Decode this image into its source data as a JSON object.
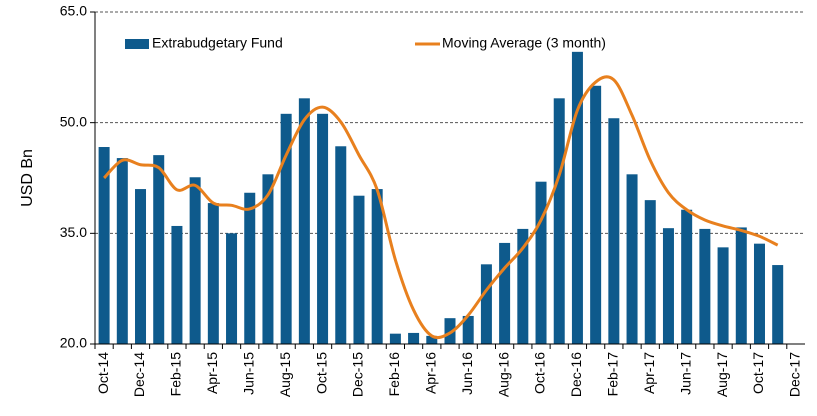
{
  "chart_data": {
    "type": "bar_line",
    "ylabel": "USD  Bn",
    "categories": [
      "Oct-14",
      null,
      "Dec-14",
      null,
      "Feb-15",
      null,
      "Apr-15",
      null,
      "Jun-15",
      null,
      "Aug-15",
      null,
      "Oct-15",
      null,
      "Dec-15",
      null,
      "Feb-16",
      null,
      "Apr-16",
      null,
      "Jun-16",
      null,
      "Aug-16",
      null,
      "Oct-16",
      null,
      "Dec-16",
      null,
      "Feb-17",
      null,
      "Apr-17",
      null,
      "Jun-17",
      null,
      "Aug-17",
      null,
      "Oct-17",
      null,
      "Dec-17"
    ],
    "series": [
      {
        "name": "Extrabudgetary Fund",
        "color": "#0e5a8c",
        "kind": "bar",
        "values": [
          46.7,
          45.2,
          41.0,
          45.6,
          36.0,
          42.6,
          39.1,
          35.0,
          40.5,
          43.0,
          51.2,
          53.3,
          51.2,
          46.8,
          40.1,
          41.0,
          21.4,
          21.5,
          21.1,
          23.5,
          23.8,
          30.8,
          33.7,
          35.6,
          42.0,
          53.3,
          59.6,
          55.0,
          50.6,
          43.0,
          39.5,
          35.7,
          38.2,
          35.6,
          33.1,
          35.8,
          33.6,
          30.7,
          null
        ]
      },
      {
        "name": "Moving Average (3 month)",
        "color": "#e8801e",
        "kind": "line",
        "values": [
          42.5,
          44.9,
          44.3,
          43.9,
          40.9,
          41.5,
          39.1,
          38.8,
          38.3,
          40.2,
          45.6,
          50.4,
          52.1,
          50.1,
          45.6,
          40.9,
          31.4,
          24.6,
          21.1,
          21.5,
          23.9,
          27.3,
          30.3,
          33.0,
          36.8,
          42.9,
          51.7,
          55.5,
          55.8,
          51.0,
          44.9,
          40.5,
          38.2,
          36.8,
          36.0,
          35.4,
          34.6,
          33.4,
          null
        ]
      }
    ],
    "ylim": [
      20,
      65
    ],
    "yticks": [
      {
        "value": 20,
        "label": "20.0"
      },
      {
        "value": 35,
        "label": "35.0"
      },
      {
        "value": 50,
        "label": "50.0"
      },
      {
        "value": 65,
        "label": "65.0"
      }
    ],
    "grid": true,
    "legend": "top"
  }
}
